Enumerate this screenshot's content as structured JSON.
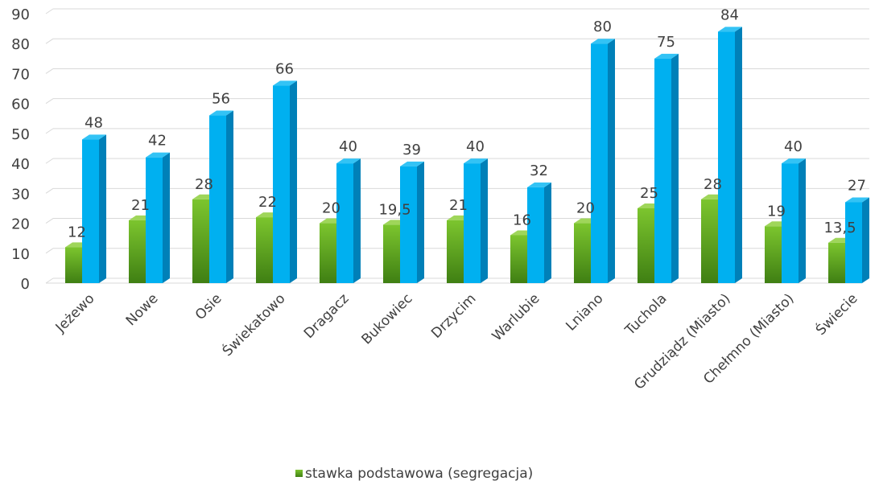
{
  "chart_data": {
    "type": "bar",
    "categories": [
      "Jeżewo",
      "Nowe",
      "Osie",
      "Świekatowo",
      "Dragacz",
      "Bukowiec",
      "Drzycim",
      "Warlubie",
      "Lniano",
      "Tuchola",
      "Grudziądz (Miasto)",
      "Chełmno (Miasto)",
      "Świecie"
    ],
    "series": [
      {
        "name": "stawka podstawowa (segregacja)",
        "values": [
          12,
          21,
          28,
          22,
          20,
          19.5,
          21,
          16,
          20,
          25,
          28,
          19,
          13.5
        ],
        "labels": [
          "12",
          "21",
          "28",
          "22",
          "20",
          "19,5",
          "21",
          "16",
          "20",
          "25",
          "28",
          "19",
          "13,5"
        ],
        "color": "#7cc52e"
      },
      {
        "values": [
          48,
          42,
          56,
          66,
          40,
          39,
          40,
          32,
          80,
          75,
          84,
          40,
          27
        ],
        "labels": [
          "48",
          "42",
          "56",
          "66",
          "40",
          "39",
          "40",
          "32",
          "80",
          "75",
          "84",
          "40",
          "27"
        ],
        "color": "#00b0f0"
      }
    ],
    "ylim": [
      0,
      90
    ],
    "yticks": [
      0,
      10,
      20,
      30,
      40,
      50,
      60,
      70,
      80,
      90
    ],
    "grid": true,
    "legend_position": "bottom"
  }
}
